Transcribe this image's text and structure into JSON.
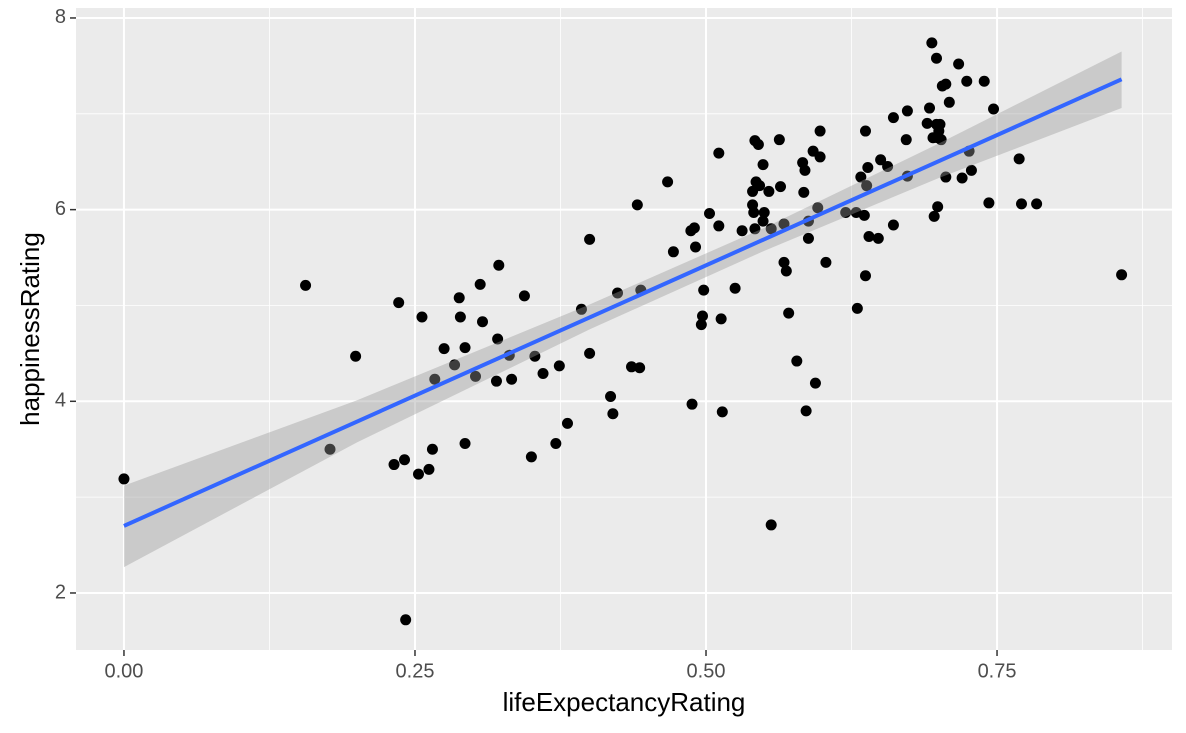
{
  "chart_data": {
    "type": "scatter",
    "x_label": "lifeExpectancyRating",
    "y_label": "happinessRating",
    "xlim": [
      -0.0412,
      0.9003
    ],
    "ylim": [
      1.405,
      8.104
    ],
    "xticks": [
      {
        "value": 0,
        "label": "0.00"
      },
      {
        "value": 0.25,
        "label": "0.25"
      },
      {
        "value": 0.5,
        "label": "0.50"
      },
      {
        "value": 0.75,
        "label": "0.75"
      }
    ],
    "yticks": [
      2,
      4,
      6,
      8
    ],
    "xminorticks": [
      0.125,
      0.375,
      0.625,
      0.875
    ],
    "yminorticks": [
      3,
      5,
      7
    ],
    "grid": true,
    "point_color": "#000000",
    "x": [
      0.0,
      0.156,
      0.199,
      0.177,
      0.236,
      0.232,
      0.241,
      0.242,
      0.253,
      0.256,
      0.262,
      0.265,
      0.267,
      0.275,
      0.284,
      0.288,
      0.289,
      0.293,
      0.293,
      0.302,
      0.306,
      0.308,
      0.32,
      0.321,
      0.322,
      0.331,
      0.333,
      0.344,
      0.35,
      0.353,
      0.36,
      0.371,
      0.374,
      0.381,
      0.393,
      0.4,
      0.4,
      0.418,
      0.42,
      0.424,
      0.436,
      0.443,
      0.441,
      0.444,
      0.467,
      0.472,
      0.487,
      0.488,
      0.49,
      0.491,
      0.496,
      0.497,
      0.498,
      0.503,
      0.511,
      0.511,
      0.513,
      0.514,
      0.525,
      0.531,
      0.54,
      0.54,
      0.541,
      0.542,
      0.542,
      0.543,
      0.545,
      0.546,
      0.549,
      0.549,
      0.55,
      0.554,
      0.556,
      0.556,
      0.563,
      0.564,
      0.567,
      0.567,
      0.569,
      0.571,
      0.578,
      0.583,
      0.584,
      0.585,
      0.586,
      0.588,
      0.588,
      0.592,
      0.594,
      0.596,
      0.598,
      0.598,
      0.603,
      0.62,
      0.629,
      0.63,
      0.633,
      0.636,
      0.637,
      0.637,
      0.638,
      0.639,
      0.64,
      0.648,
      0.65,
      0.656,
      0.661,
      0.661,
      0.672,
      0.673,
      0.673,
      0.69,
      0.692,
      0.694,
      0.695,
      0.696,
      0.698,
      0.698,
      0.699,
      0.699,
      0.7,
      0.701,
      0.702,
      0.703,
      0.706,
      0.706,
      0.709,
      0.717,
      0.72,
      0.724,
      0.726,
      0.728,
      0.739,
      0.743,
      0.747,
      0.769,
      0.771,
      0.784,
      0.857
    ],
    "values": [
      3.19,
      5.21,
      4.47,
      3.5,
      5.03,
      3.34,
      3.39,
      1.72,
      3.24,
      4.88,
      3.29,
      3.5,
      4.23,
      4.55,
      4.38,
      5.08,
      4.88,
      4.56,
      3.56,
      4.26,
      5.22,
      4.83,
      4.21,
      4.65,
      5.42,
      4.48,
      4.23,
      5.1,
      3.42,
      4.47,
      4.29,
      3.56,
      4.37,
      3.77,
      4.96,
      5.69,
      4.5,
      4.05,
      3.87,
      5.13,
      4.36,
      4.35,
      6.05,
      5.16,
      6.29,
      5.56,
      5.78,
      3.97,
      5.81,
      5.61,
      4.8,
      4.89,
      5.16,
      5.96,
      6.59,
      5.83,
      4.86,
      3.89,
      5.18,
      5.78,
      6.19,
      6.05,
      5.97,
      6.72,
      5.8,
      6.29,
      6.68,
      6.25,
      6.47,
      5.88,
      5.97,
      6.19,
      2.71,
      5.8,
      6.73,
      6.24,
      5.85,
      5.45,
      5.36,
      4.92,
      4.42,
      6.49,
      6.18,
      6.41,
      3.9,
      5.7,
      5.88,
      6.61,
      4.19,
      6.02,
      6.82,
      6.55,
      5.45,
      5.97,
      5.97,
      4.97,
      6.34,
      5.94,
      6.82,
      5.31,
      6.25,
      6.44,
      5.72,
      5.7,
      6.52,
      6.45,
      6.96,
      5.84,
      6.73,
      7.03,
      6.35,
      6.9,
      7.06,
      7.74,
      6.75,
      5.93,
      6.89,
      7.58,
      6.03,
      6.75,
      6.82,
      6.89,
      6.73,
      7.29,
      7.31,
      6.34,
      7.12,
      7.52,
      6.33,
      7.34,
      6.61,
      6.41,
      7.34,
      6.07,
      7.05,
      6.53,
      6.06,
      6.06,
      5.32
    ],
    "fit": {
      "color": "#3366ff",
      "x": [
        0,
        0.857
      ],
      "values": [
        2.7,
        7.36
      ]
    },
    "band": {
      "color": "#999999",
      "x": [
        0,
        0.2,
        0.4,
        0.55,
        0.7,
        0.857
      ],
      "lower": [
        2.27,
        3.57,
        4.75,
        5.57,
        6.33,
        7.06
      ],
      "upper": [
        3.12,
        4.01,
        5.01,
        5.81,
        6.69,
        7.65
      ]
    }
  }
}
